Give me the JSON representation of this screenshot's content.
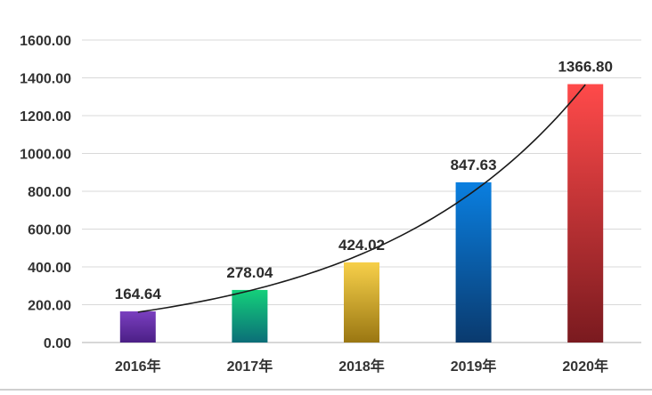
{
  "chart_data": {
    "type": "bar",
    "categories": [
      "2016年",
      "2017年",
      "2018年",
      "2019年",
      "2020年"
    ],
    "values": [
      164.64,
      278.04,
      424.02,
      847.63,
      1366.8
    ],
    "value_labels": [
      "164.64",
      "278.04",
      "424.02",
      "847.63",
      "1366.80"
    ],
    "yticks": [
      "0.00",
      "200.00",
      "400.00",
      "600.00",
      "800.00",
      "1000.00",
      "1200.00",
      "1400.00",
      "1600.00"
    ],
    "ylim": [
      0,
      1600
    ],
    "title": "",
    "xlabel": "",
    "ylabel": "",
    "grid": true,
    "legend": "none",
    "trendline": "exponential",
    "bar_gradients": [
      [
        "#7a3fbf",
        "#4b1f86"
      ],
      [
        "#14d07a",
        "#0b6e78"
      ],
      [
        "#f7d04a",
        "#9a7712"
      ],
      [
        "#0a7fe0",
        "#0a3a6e"
      ],
      [
        "#ff4a4a",
        "#7a1a1f"
      ]
    ]
  }
}
